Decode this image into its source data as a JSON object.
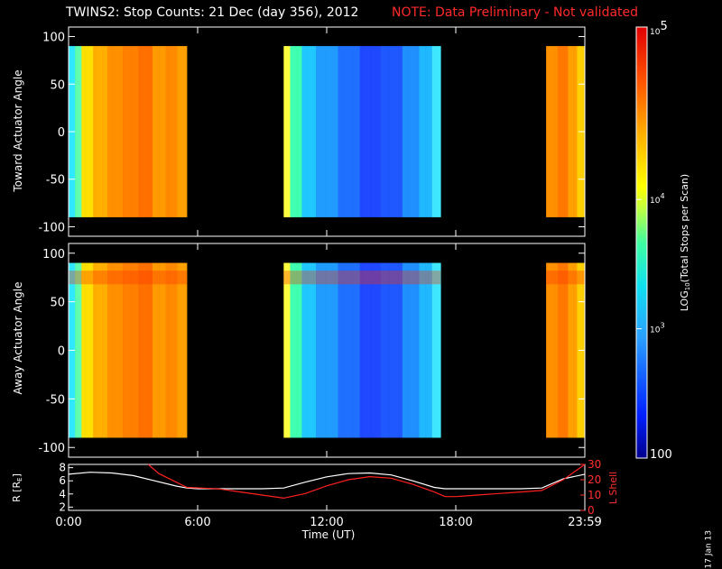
{
  "title": "TWINS2: Stop Counts: 21 Dec (day 356), 2012",
  "note": "NOTE: Data Preliminary - Not validated",
  "datestamp": "17 Jan 13",
  "chart_data": [
    {
      "type": "heatmap",
      "panel": "toward",
      "ylabel": "Toward Actuator Angle",
      "ylim": [
        -110,
        110
      ],
      "yticks": [
        100,
        50,
        0,
        -50,
        -100
      ],
      "xlim": [
        0,
        24
      ],
      "data_segments_ut": [
        [
          0.0,
          5.5
        ],
        [
          10.0,
          17.3
        ],
        [
          22.2,
          24.0
        ]
      ],
      "color_scale": "log10 counts, 100 to 100000"
    },
    {
      "type": "heatmap",
      "panel": "away",
      "ylabel": "Away Actuator Angle",
      "ylim": [
        -110,
        110
      ],
      "yticks": [
        100,
        50,
        0,
        -50,
        -100
      ],
      "xlim": [
        0,
        24
      ],
      "data_segments_ut": [
        [
          0.0,
          5.5
        ],
        [
          10.0,
          17.3
        ],
        [
          22.2,
          24.0
        ]
      ],
      "color_scale": "log10 counts, 100 to 100000"
    },
    {
      "type": "line",
      "panel": "orbit",
      "xlabel": "Time (UT)",
      "xticks": [
        "0:00",
        "6:00",
        "12:00",
        "18:00",
        "23:59"
      ],
      "ylabel_left": "R [R",
      "ylabel_left_sub": "E",
      "ylabel_left_close": "]",
      "ylabel_right": "L Shell",
      "ylim_left": [
        1.5,
        8.5
      ],
      "yticks_left": [
        2,
        4,
        6,
        8
      ],
      "ylim_right": [
        0,
        30
      ],
      "yticks_right": [
        0,
        10,
        20,
        30
      ],
      "series": [
        {
          "axis": "left",
          "color": "#ffffff",
          "x": [
            0,
            1,
            2,
            3,
            4,
            5,
            5.5,
            6,
            7,
            8,
            9,
            10,
            11,
            12,
            13,
            14,
            15,
            16,
            17,
            17.5,
            18,
            19,
            20,
            21,
            22,
            23,
            24
          ],
          "y": [
            7.0,
            7.3,
            7.2,
            6.8,
            6.0,
            5.2,
            4.9,
            4.8,
            4.8,
            4.8,
            4.8,
            4.9,
            5.8,
            6.6,
            7.1,
            7.2,
            6.9,
            6.0,
            5.0,
            4.8,
            4.8,
            4.8,
            4.8,
            4.8,
            4.9,
            6.3,
            7.0
          ]
        },
        {
          "axis": "right",
          "color": "#ff2020",
          "x": [
            3.7,
            4.2,
            5.5,
            7,
            8,
            9,
            10,
            11,
            12,
            13,
            14,
            15,
            16,
            17,
            17.5,
            18,
            19,
            20,
            21,
            22,
            23,
            24
          ],
          "y": [
            30,
            24,
            15,
            14,
            12,
            10,
            8,
            11,
            16,
            20,
            22,
            21,
            17,
            12,
            9,
            9,
            10,
            11,
            12,
            13,
            20,
            30
          ]
        }
      ]
    }
  ],
  "colorbar": {
    "label": "LOG",
    "label_sub": "10",
    "label_rest": "(Total Stops per Scan)",
    "ticks": [
      {
        "text": "10",
        "exp": "5",
        "pos": 1.0
      },
      {
        "text": "10",
        "exp": "4",
        "pos": 0.6
      },
      {
        "text": "10",
        "exp": "3",
        "pos": 0.3
      },
      {
        "text": "100",
        "exp": "",
        "pos": 0.0
      }
    ]
  }
}
